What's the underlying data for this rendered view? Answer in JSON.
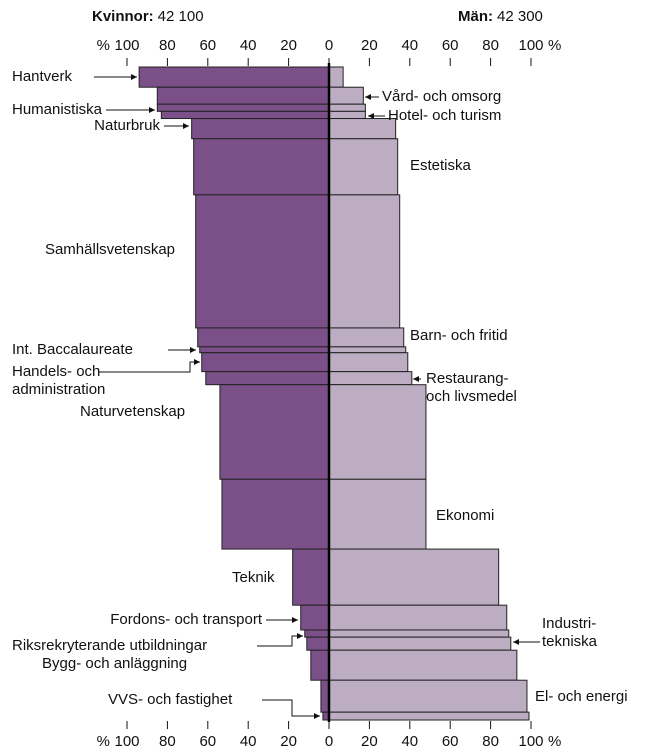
{
  "chart_data": {
    "type": "butterfly",
    "categories": [
      "Hantverk",
      "Vård- och omsorg",
      "Humanistiska",
      "Hotel- och turism",
      "Naturbruk",
      "Estetiska",
      "Samhällsvetenskap",
      "Barn- och fritid",
      "Int. Baccalaureate",
      "Handels- och\nadministration",
      "Restaurang-\noch livsmedel",
      "Naturvetenskap",
      "Ekonomi",
      "Teknik",
      "Fordons- och transport",
      "Industri-\ntekniska",
      "Riksrekryterande utbildningar",
      "Bygg- och anläggning",
      "El- och energi",
      "VVS- och fastighet"
    ],
    "sizes": [
      3.1,
      2.6,
      1.1,
      1.1,
      3.1,
      8.6,
      20.4,
      2.9,
      0.9,
      2.9,
      2.0,
      14.5,
      10.7,
      8.6,
      3.8,
      1.1,
      2.0,
      4.6,
      4.9,
      1.2
    ],
    "series": [
      {
        "name": "Kvinnor:",
        "total": {
          "value": 42100,
          "label": "42 100"
        },
        "color": "#7b4f88",
        "values": [
          94,
          85,
          85,
          83,
          68,
          67,
          66,
          65,
          64,
          63,
          61,
          54,
          53,
          18,
          14,
          12,
          11,
          9,
          4,
          3
        ]
      },
      {
        "name": "Män:",
        "total": {
          "value": 42300,
          "label": "42 300"
        },
        "color": "#bcadc3",
        "values": [
          7,
          17,
          18,
          18,
          33,
          34,
          35,
          37,
          38,
          39,
          41,
          48,
          48,
          84,
          88,
          89,
          90,
          93,
          98,
          99
        ]
      }
    ],
    "xlim": [
      0,
      100
    ],
    "xticks": [
      0,
      20,
      40,
      60,
      80,
      100
    ],
    "unit_label": "%"
  }
}
